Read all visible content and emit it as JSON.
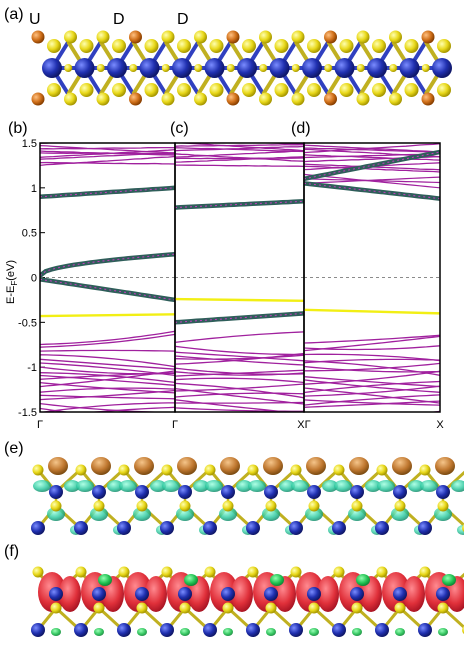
{
  "panels": {
    "a": "(a)",
    "b": "(b)",
    "c": "(c)",
    "d": "(d)",
    "e": "(e)",
    "f": "(f)"
  },
  "spin_labels": [
    "U",
    "D",
    "D"
  ],
  "chart_data": {
    "type": "line",
    "ylabel": "E-E",
    "ylabel_sub": "F",
    "ylabel_tail": "(eV)",
    "ylim": [
      -1.5,
      1.5
    ],
    "yticks": [
      "1.5",
      "1",
      "0.5",
      "0",
      "-0.5",
      "-1",
      "-1.5"
    ],
    "yticks_values": [
      1.5,
      1,
      0.5,
      0,
      -0.5,
      -1,
      -1.5
    ],
    "xticks": [
      "Γ",
      "Γ",
      "XΓ",
      "X"
    ],
    "fermi_level": 0,
    "colors": {
      "bands": "#a0219e",
      "projected": "#2f5e5a",
      "defect": "#f2ef14",
      "fermi": "#666666"
    },
    "subplots": [
      {
        "panel": "b",
        "x_range": [
          "Γ",
          "Γ"
        ],
        "defect_band": {
          "start": -0.43,
          "end": -0.41
        },
        "projected_bands": [
          {
            "name": "cb_edge",
            "start": 0.9,
            "end": 1.0
          },
          {
            "name": "vb_edge",
            "start": 0.02,
            "end": 0.26
          },
          {
            "name": "lower",
            "start": -0.02,
            "end": -0.25
          }
        ]
      },
      {
        "panel": "c",
        "x_range": [
          "Γ",
          "X"
        ],
        "defect_band": {
          "start": -0.24,
          "end": -0.26
        },
        "projected_bands": [
          {
            "name": "cb_edge",
            "start": 0.78,
            "end": 0.85
          },
          {
            "name": "vb_edge",
            "start": -0.5,
            "end": -0.4
          }
        ]
      },
      {
        "panel": "d",
        "x_range": [
          "Γ",
          "X"
        ],
        "defect_band": {
          "start": -0.36,
          "end": -0.4
        },
        "projected_bands": [
          {
            "name": "cb_upper",
            "start": 1.1,
            "end": 1.4
          },
          {
            "name": "cb_lower",
            "start": 1.05,
            "end": 0.88
          }
        ]
      }
    ]
  }
}
